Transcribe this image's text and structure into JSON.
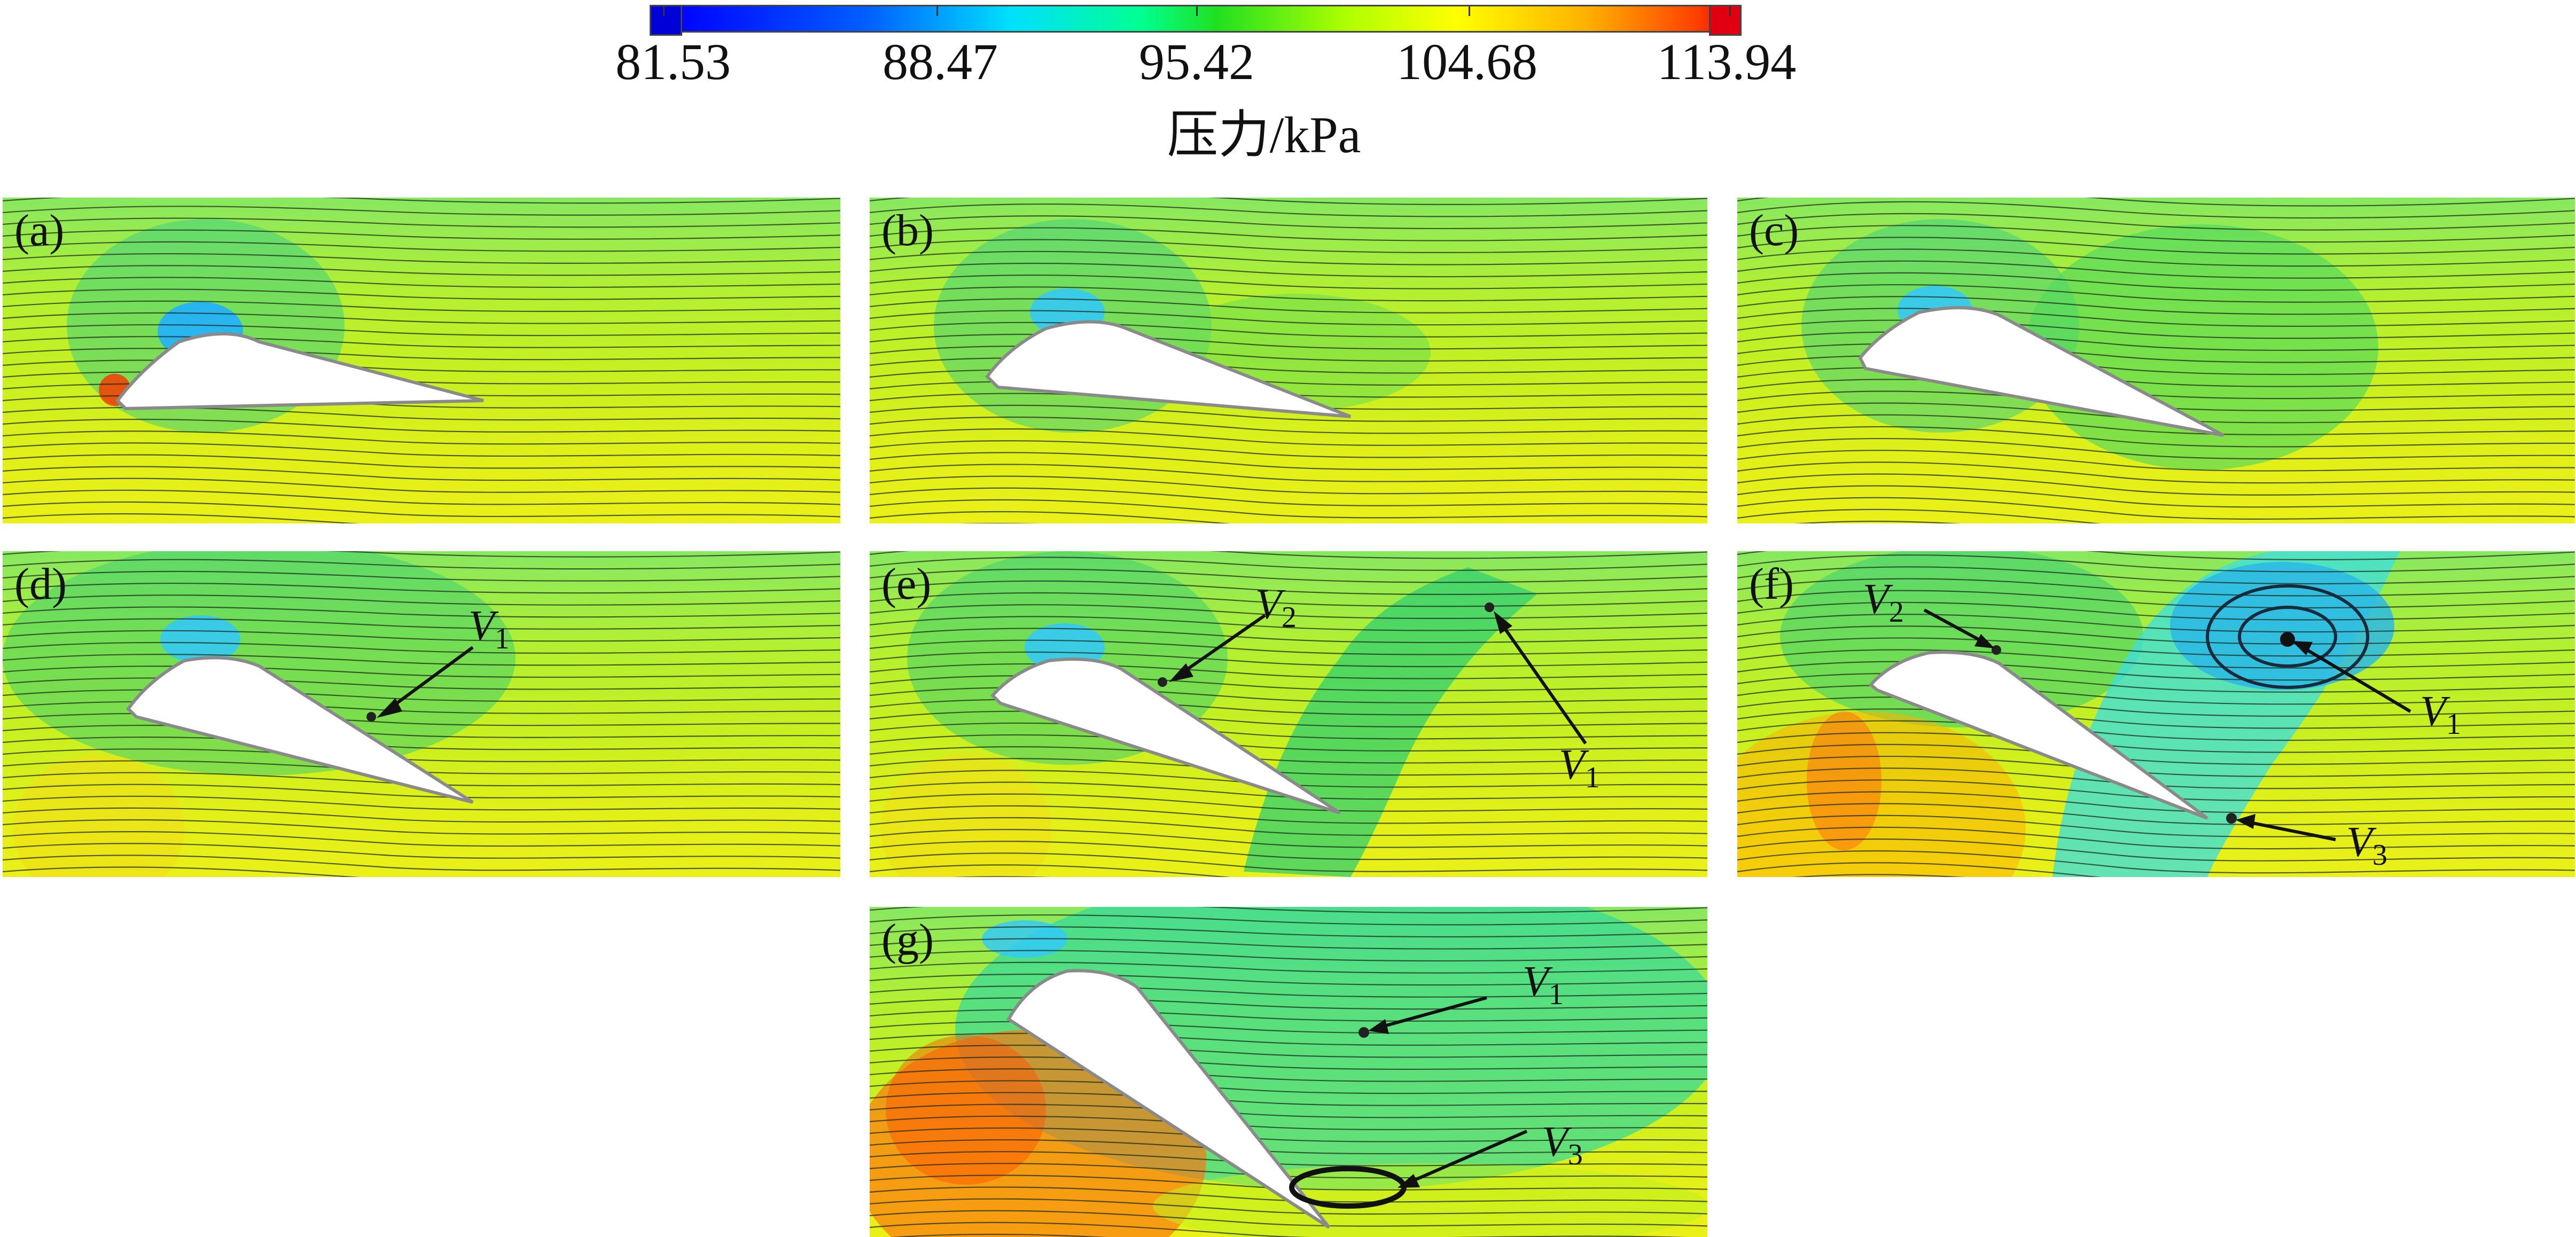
{
  "colorbar": {
    "title": "压力/kPa",
    "ticks": [
      "81.53",
      "88.47",
      "95.42",
      "104.68",
      "113.94"
    ],
    "colors": {
      "min": "#0000e0",
      "low": "#00e0ff",
      "mid": "#20e020",
      "high": "#ffff00",
      "max": "#e00000"
    }
  },
  "panels": {
    "a": {
      "label": "(a)"
    },
    "b": {
      "label": "(b)"
    },
    "c": {
      "label": "(c)"
    },
    "d": {
      "label": "(d)",
      "v1": "V",
      "v1_sub": "1"
    },
    "e": {
      "label": "(e)",
      "v1": "V",
      "v1_sub": "1",
      "v2": "V",
      "v2_sub": "2"
    },
    "f": {
      "label": "(f)",
      "v1": "V",
      "v1_sub": "1",
      "v2": "V",
      "v2_sub": "2",
      "v3": "V",
      "v3_sub": "3"
    },
    "g": {
      "label": "(g)",
      "v1": "V",
      "v1_sub": "1",
      "v3": "V",
      "v3_sub": "3"
    }
  }
}
